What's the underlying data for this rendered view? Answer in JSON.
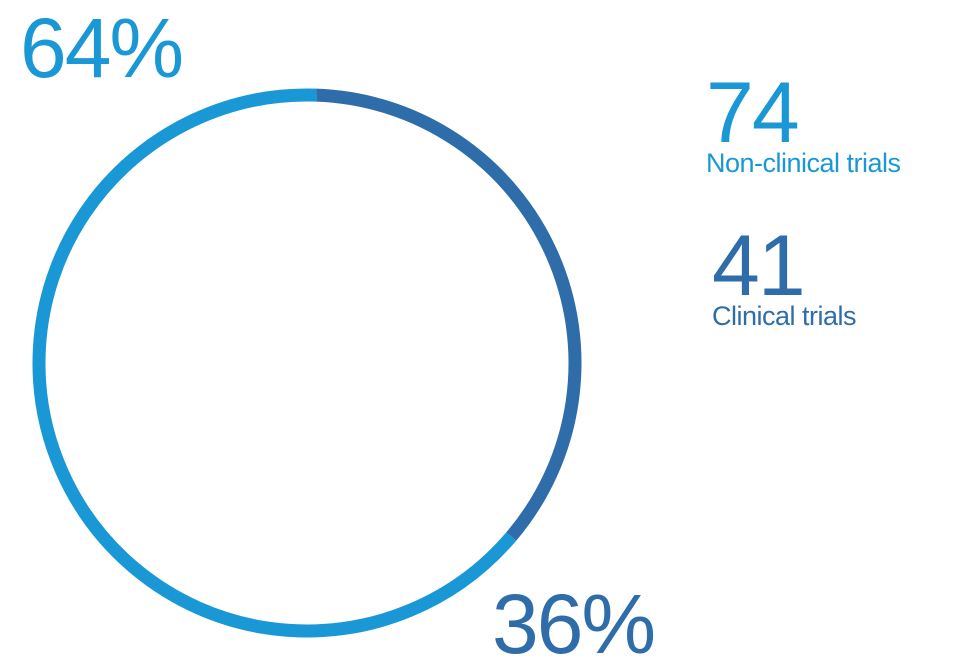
{
  "chart_data": {
    "type": "pie",
    "title": "",
    "categories": [
      "Non-clinical trials",
      "Clinical trials"
    ],
    "values": [
      74,
      41
    ],
    "percent_labels": [
      "64%",
      "36%"
    ],
    "colors": [
      "#1a98d5",
      "#2e6da9"
    ],
    "legend_placement": "right"
  },
  "legend": {
    "nonclinical": {
      "count": "74",
      "label": "Non-clinical trials"
    },
    "clinical": {
      "count": "41",
      "label": "Clinical trials"
    }
  }
}
